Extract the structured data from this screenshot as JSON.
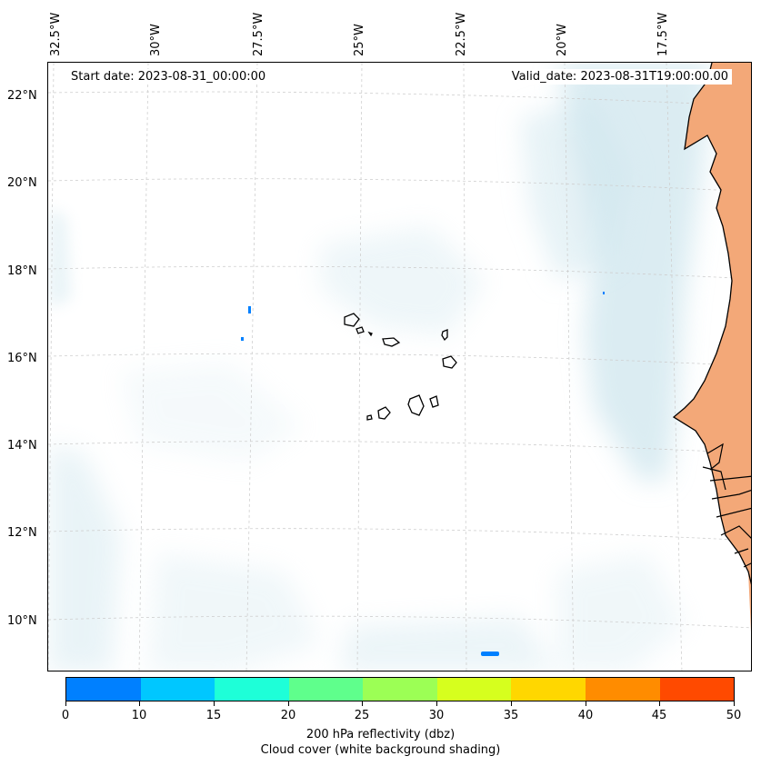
{
  "map": {
    "start_date": "Start date: 2023-08-31_00:00:00",
    "valid_date": "Valid_date: 2023-08-31T19:00:00.00",
    "lon_labels": [
      "32.5°W",
      "30°W",
      "27.5°W",
      "25°W",
      "22.5°W",
      "20°W",
      "17.5°W"
    ],
    "lat_labels": [
      "22°N",
      "20°N",
      "18°N",
      "16°N",
      "14°N",
      "12°N",
      "10°N"
    ],
    "land_color": "#f3a878",
    "cloud_color": "#cfe6ee",
    "coast_color": "#000000"
  },
  "colorbar": {
    "ticks": [
      "0",
      "10",
      "15",
      "20",
      "25",
      "30",
      "35",
      "40",
      "45",
      "50"
    ],
    "colors": [
      "#0080ff",
      "#00c7ff",
      "#1effd8",
      "#5fff8c",
      "#9cff55",
      "#d6ff1e",
      "#ffd700",
      "#ff8c00",
      "#ff4a00"
    ],
    "label": "200 hPa reflectivity (dbz)",
    "sublabel": "Cloud cover (white background shading)"
  }
}
